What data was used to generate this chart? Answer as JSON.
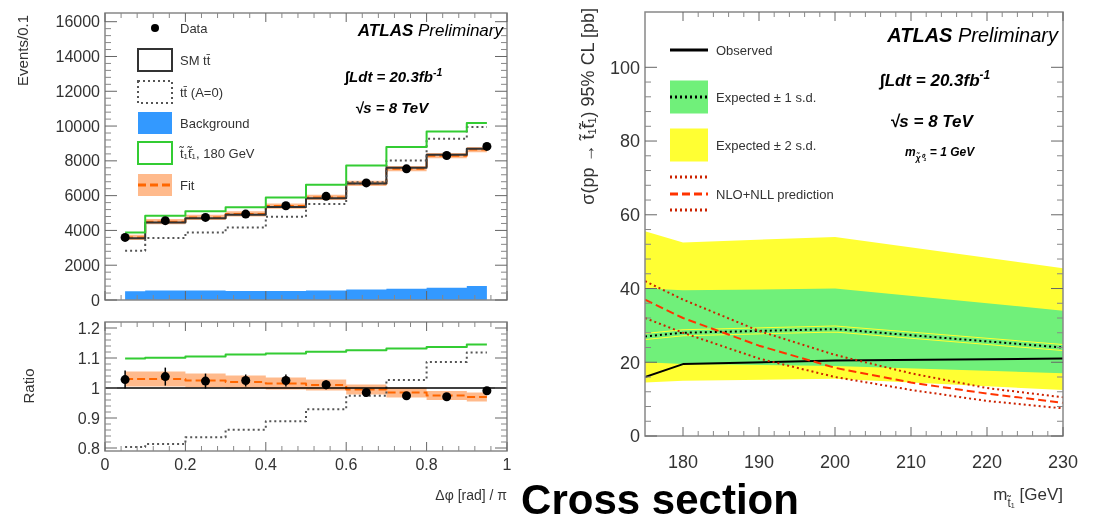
{
  "chart_data": [
    {
      "type": "line",
      "ylabel": "Events/0.1",
      "x": [
        0.05,
        0.15,
        0.25,
        0.35,
        0.45,
        0.55,
        0.65,
        0.75,
        0.85,
        0.95
      ],
      "xlim": [
        0,
        1
      ],
      "xticks": [
        0,
        0.2,
        0.4,
        0.6,
        0.8,
        1
      ],
      "ylim": [
        0,
        16500
      ],
      "yticks": [
        0,
        2000,
        4000,
        6000,
        8000,
        10000,
        12000,
        14000,
        16000
      ],
      "tick_labels": "y",
      "legend": "top left",
      "annotations": [
        "ATLAS Preliminary",
        "∫Ldt = 20.3fb$^{-1}$",
        "√s = 8 TeV"
      ],
      "series": [
        {
          "name": "Data",
          "type": "scatter",
          "marker": "circle",
          "color": "#000000",
          "values": [
            3600,
            4560,
            4750,
            4940,
            5420,
            5960,
            6730,
            7540,
            8310,
            8830
          ]
        },
        {
          "name": "SM tt̄",
          "type": "step",
          "color": "#333333",
          "values": [
            3550,
            4450,
            4700,
            4900,
            5350,
            5850,
            6700,
            7600,
            8350,
            8700
          ]
        },
        {
          "name": "tt̄ (A=0)",
          "type": "step",
          "line_style": "dotted",
          "color": "#555555",
          "values": [
            2830,
            3560,
            3880,
            4170,
            4790,
            5520,
            6770,
            8020,
            9270,
            9940
          ]
        },
        {
          "name": "Background",
          "type": "area",
          "color": "#3399ff",
          "values": [
            500,
            550,
            550,
            520,
            520,
            540,
            600,
            650,
            700,
            800
          ]
        },
        {
          "name": "t̃₁t̃̄₁, 180 GeV",
          "type": "step",
          "color": "#33cc33",
          "values": [
            3880,
            4850,
            5100,
            5330,
            5900,
            6620,
            7730,
            8790,
            9690,
            10170
          ]
        },
        {
          "name": "Fit",
          "type": "step",
          "line_style": "dashed",
          "color": "#ff6600",
          "values": [
            3600,
            4500,
            4750,
            4950,
            5400,
            5900,
            6700,
            7550,
            8300,
            8650
          ],
          "lower": [
            3450,
            4350,
            4600,
            4800,
            5250,
            5750,
            6550,
            7400,
            8150,
            8500
          ],
          "upper": [
            3750,
            4650,
            4900,
            5100,
            5550,
            6050,
            6850,
            7700,
            8450,
            8800
          ]
        }
      ]
    },
    {
      "type": "line",
      "xlabel": "Δφ [rad] / π",
      "ylabel": "Ratio",
      "x": [
        0.05,
        0.15,
        0.25,
        0.35,
        0.45,
        0.55,
        0.65,
        0.75,
        0.85,
        0.95
      ],
      "xlim": [
        0,
        1
      ],
      "xticks": [
        0,
        0.2,
        0.4,
        0.6,
        0.8,
        1
      ],
      "ylim": [
        0.79,
        1.22
      ],
      "yticks": [
        0.8,
        0.9,
        1,
        1.1,
        1.2
      ],
      "ref_lines": [
        {
          "axis": "y",
          "value": 1,
          "color": "#000000"
        }
      ],
      "series": [
        {
          "type": "step",
          "color": "#33cc33",
          "values": [
            1.098,
            1.101,
            1.105,
            1.112,
            1.115,
            1.121,
            1.126,
            1.132,
            1.137,
            1.145
          ]
        },
        {
          "type": "step",
          "line_style": "dotted",
          "color": "#555555",
          "values": [
            0.803,
            0.813,
            0.836,
            0.861,
            0.889,
            0.929,
            0.974,
            1.027,
            1.087,
            1.118
          ]
        },
        {
          "type": "step",
          "line_style": "dashed",
          "color": "#ff6600",
          "values": [
            1.03,
            1.03,
            1.025,
            1.02,
            1.015,
            1.01,
            0.995,
            0.985,
            0.975,
            0.97
          ],
          "lower": [
            1.005,
            1.005,
            1.002,
            0.998,
            0.995,
            0.992,
            0.978,
            0.968,
            0.96,
            0.955
          ],
          "upper": [
            1.055,
            1.055,
            1.048,
            1.042,
            1.035,
            1.028,
            1.012,
            1.002,
            0.99,
            0.985
          ]
        },
        {
          "type": "scatter",
          "marker": "circle",
          "color": "#000000",
          "values": [
            1.028,
            1.038,
            1.023,
            1.025,
            1.025,
            1.011,
            0.985,
            0.974,
            0.971,
            0.991
          ],
          "errors": [
            0.03,
            0.03,
            0.025,
            0.02,
            0.02,
            0.015,
            0.015,
            0.012,
            0.012,
            0.012
          ]
        }
      ]
    },
    {
      "type": "line",
      "xlabel": "m$_{t̃₁}$ [GeV]",
      "ylabel": "σ(pp → t̃₁t̃̄₁) 95% CL [pb]",
      "x": [
        175,
        180,
        200,
        230
      ],
      "xlim": [
        175,
        230
      ],
      "xticks": [
        180,
        190,
        200,
        210,
        220,
        230
      ],
      "ylim": [
        0,
        115
      ],
      "yticks": [
        0,
        20,
        40,
        60,
        80,
        100
      ],
      "legend": "top left",
      "annotations": [
        "ATLAS Preliminary",
        "∫Ldt = 20.3fb$^{-1}$",
        "√s = 8 TeV",
        "m$_{χ̃⁰₁}$ = 1 GeV",
        "Cross section"
      ],
      "series": [
        {
          "name": "Observed",
          "type": "line",
          "color": "#000000",
          "values": [
            16,
            19.5,
            20.5,
            21
          ]
        },
        {
          "type": "line",
          "line_style": "dotted",
          "color": "#000000",
          "values": [
            27,
            28,
            29,
            24
          ]
        },
        {
          "name": "Expected ± 1 s.d.",
          "type": "line",
          "color": "#70f07a",
          "values": [
            27,
            28,
            29,
            24
          ],
          "lower": [
            20,
            19.5,
            19,
            17
          ],
          "upper": [
            40,
            39.5,
            40,
            34
          ]
        },
        {
          "name": "Expected ± 2 s.d.",
          "type": "line",
          "color": "#ffff33",
          "values": [
            27,
            28,
            29,
            24
          ],
          "lower": [
            14.5,
            15,
            15.5,
            12.5
          ],
          "upper": [
            55.5,
            52.5,
            54,
            45.5
          ]
        },
        {
          "type": "line",
          "line_style": "dotted",
          "color": "#cc2200",
          "x": [
            175,
            180,
            190,
            200,
            210,
            220,
            230
          ],
          "values": [
            42,
            37,
            28.5,
            22,
            17,
            13,
            10.5
          ]
        },
        {
          "name": "NLO+NLL prediction",
          "type": "line",
          "line_style": "dashed",
          "color": "#ff3300",
          "x": [
            175,
            180,
            190,
            200,
            210,
            220,
            230
          ],
          "values": [
            37,
            32,
            24.5,
            18.5,
            14.5,
            11.5,
            9
          ]
        },
        {
          "type": "line",
          "line_style": "dotted",
          "color": "#cc2200",
          "x": [
            175,
            180,
            190,
            200,
            210,
            220,
            230
          ],
          "values": [
            32,
            28,
            21,
            16,
            12.5,
            9.5,
            7.5
          ]
        }
      ]
    }
  ]
}
